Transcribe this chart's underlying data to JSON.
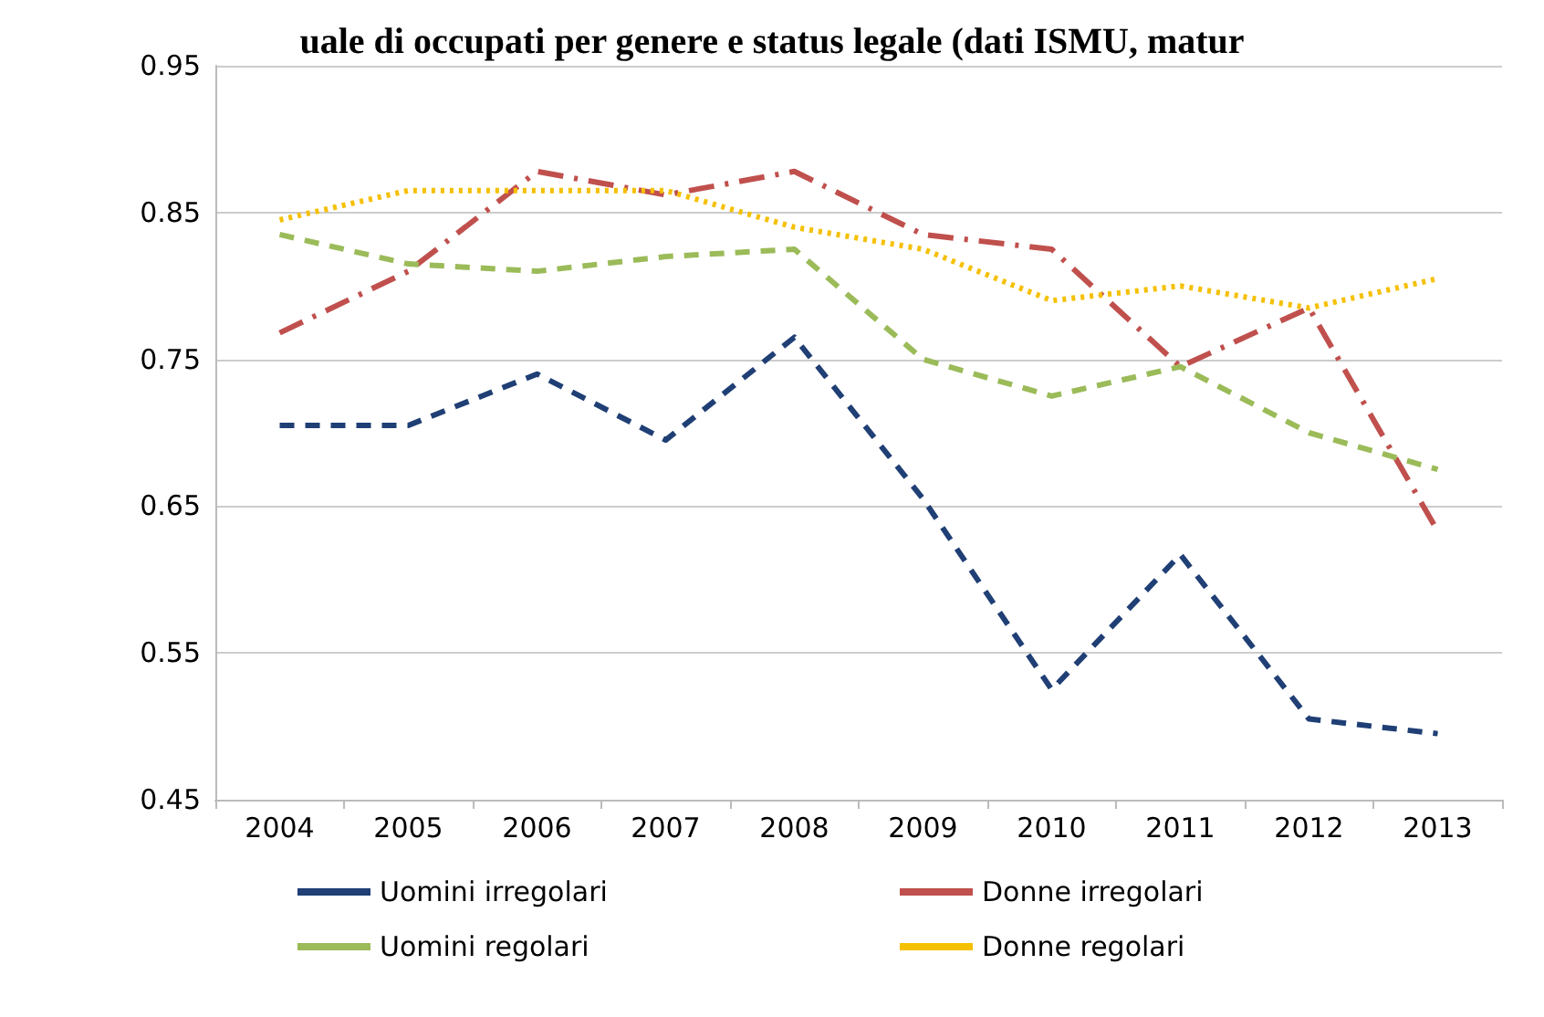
{
  "chart_data": {
    "type": "line",
    "title": "uale di occupati per genere e status legale (dati ISMU, matur",
    "categories": [
      "2004",
      "2005",
      "2006",
      "2007",
      "2008",
      "2009",
      "2010",
      "2011",
      "2012",
      "2013"
    ],
    "series": [
      {
        "name": "Uomini irregolari",
        "color": "#1f3f75",
        "line_style": "dashed",
        "values": [
          0.705,
          0.705,
          0.74,
          0.695,
          0.765,
          0.655,
          0.525,
          0.617,
          0.505,
          0.495
        ]
      },
      {
        "name": "Donne irregolari",
        "color": "#c0504d",
        "line_style": "dashdot",
        "values": [
          0.768,
          0.81,
          0.878,
          0.862,
          0.878,
          0.835,
          0.825,
          0.745,
          0.785,
          0.633
        ]
      },
      {
        "name": "Uomini regolari",
        "color": "#9bbb59",
        "line_style": "dashed",
        "values": [
          0.835,
          0.815,
          0.81,
          0.82,
          0.825,
          0.75,
          0.725,
          0.745,
          0.7,
          0.675
        ]
      },
      {
        "name": "Donne regolari",
        "color": "#f5c000",
        "line_style": "dotted",
        "values": [
          0.845,
          0.865,
          0.865,
          0.865,
          0.84,
          0.825,
          0.79,
          0.8,
          0.785,
          0.805
        ]
      }
    ],
    "ylim": [
      0.45,
      0.95
    ],
    "yticks": [
      0.45,
      0.55,
      0.65,
      0.75,
      0.85,
      0.95
    ],
    "grid": "y",
    "legend": "bottom",
    "marker": "none"
  }
}
